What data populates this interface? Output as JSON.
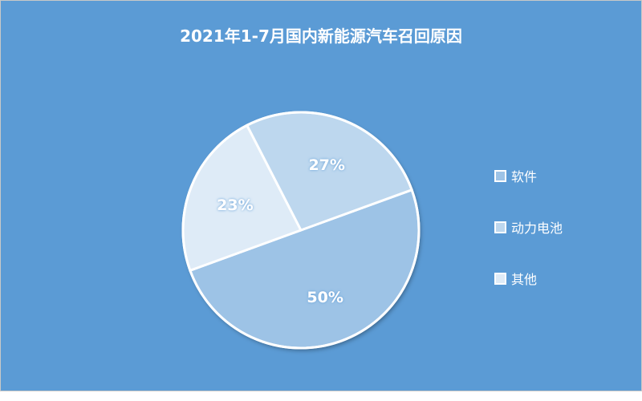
{
  "chart_data": {
    "type": "pie",
    "title": "2021年1-7月国内新能源汽车召回原因",
    "categories": [
      "软件",
      "动力电池",
      "其他"
    ],
    "values": [
      50,
      27,
      23
    ],
    "labels": [
      "50%",
      "27%",
      "23%"
    ],
    "colors": [
      "#9DC3E6",
      "#BDD7EE",
      "#DEEBF7"
    ],
    "background": "#5B9BD5",
    "legend_position": "right"
  }
}
